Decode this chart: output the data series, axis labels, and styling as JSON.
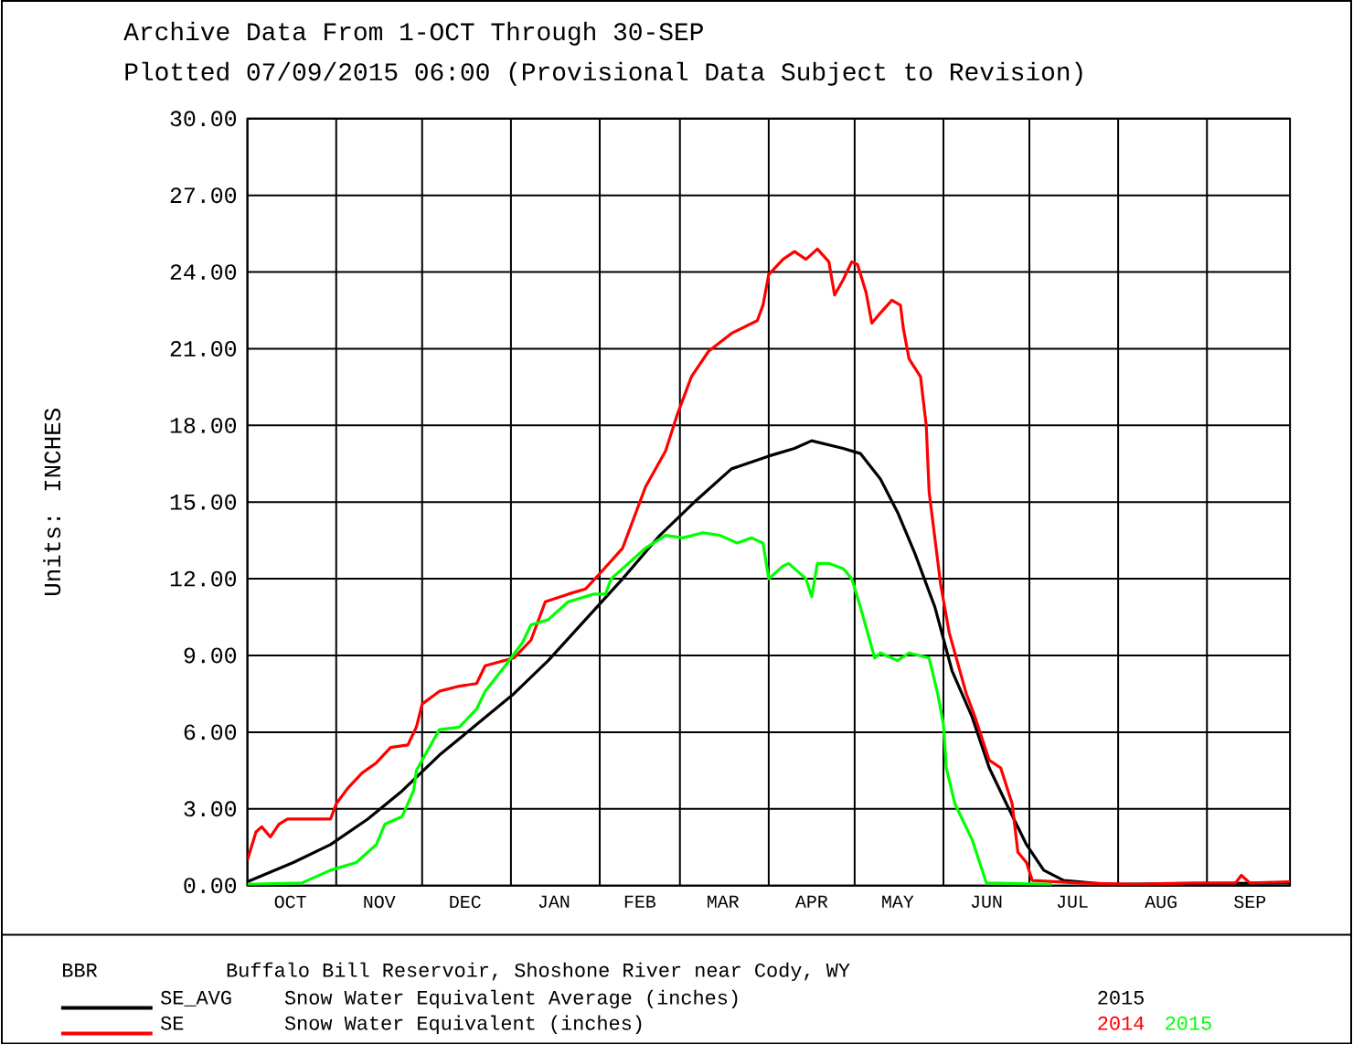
{
  "chart_data": {
    "type": "line",
    "title": "Archive Data From  1-OCT Through 30-SEP",
    "subtitle": "Plotted 07/09/2015  06:00 (Provisional Data Subject to Revision)",
    "ylabel": "Units: INCHES",
    "xlim": [
      "2014-10-01",
      "2015-09-30"
    ],
    "xticks": [
      {
        "value": "2014-10-01",
        "label": null
      },
      {
        "value": "2014-11-01",
        "label": null
      },
      {
        "value": "2014-12-01",
        "label": null
      },
      {
        "value": "2015-01-01",
        "label": null
      },
      {
        "value": "2015-02-01",
        "label": null
      },
      {
        "value": "2015-03-01",
        "label": null
      },
      {
        "value": "2015-04-01",
        "label": null
      },
      {
        "value": "2015-05-01",
        "label": null
      },
      {
        "value": "2015-06-01",
        "label": null
      },
      {
        "value": "2015-07-01",
        "label": null
      },
      {
        "value": "2015-08-01",
        "label": null
      },
      {
        "value": "2015-09-01",
        "label": null
      },
      {
        "value": "2014-10-16",
        "label": "OCT"
      },
      {
        "value": "2014-11-16",
        "label": "NOV"
      },
      {
        "value": "2014-12-16",
        "label": "DEC"
      },
      {
        "value": "2015-01-16",
        "label": "JAN"
      },
      {
        "value": "2015-02-15",
        "label": "FEB"
      },
      {
        "value": "2015-03-16",
        "label": "MAR"
      },
      {
        "value": "2015-04-16",
        "label": "APR"
      },
      {
        "value": "2015-05-16",
        "label": "MAY"
      },
      {
        "value": "2015-06-16",
        "label": "JUN"
      },
      {
        "value": "2015-07-16",
        "label": "JUL"
      },
      {
        "value": "2015-08-16",
        "label": "AUG"
      },
      {
        "value": "2015-09-16",
        "label": "SEP"
      }
    ],
    "ylim": [
      0,
      30
    ],
    "yticks": [
      {
        "value": 0,
        "label": "0.00"
      },
      {
        "value": 3,
        "label": "3.00"
      },
      {
        "value": 6,
        "label": "6.00"
      },
      {
        "value": 9,
        "label": "9.00"
      },
      {
        "value": 12,
        "label": "12.00"
      },
      {
        "value": 15,
        "label": "15.00"
      },
      {
        "value": 18,
        "label": "18.00"
      },
      {
        "value": 21,
        "label": "21.00"
      },
      {
        "value": 24,
        "label": "24.00"
      },
      {
        "value": 27,
        "label": "27.00"
      },
      {
        "value": 30,
        "label": "30.00"
      }
    ],
    "grid": true,
    "legend": "bottom",
    "series": [
      {
        "name": "SE_AVG",
        "color": "#000000",
        "x": [
          "2014-10-01",
          "2014-10-17",
          "2014-10-30",
          "2014-11-12",
          "2014-11-24",
          "2014-12-07",
          "2014-12-20",
          "2015-01-02",
          "2015-01-14",
          "2015-01-27",
          "2015-02-09",
          "2015-02-22",
          "2015-03-07",
          "2015-03-19",
          "2015-04-01",
          "2015-04-10",
          "2015-04-16",
          "2015-04-27",
          "2015-05-03",
          "2015-05-10",
          "2015-05-16",
          "2015-05-22",
          "2015-05-29",
          "2015-06-04",
          "2015-06-11",
          "2015-06-17",
          "2015-06-23",
          "2015-06-30",
          "2015-07-06",
          "2015-07-13",
          "2015-07-28",
          "2015-09-30"
        ],
        "values": [
          0.15,
          0.9,
          1.6,
          2.6,
          3.7,
          5.1,
          6.3,
          7.5,
          8.8,
          10.4,
          12.0,
          13.7,
          15.1,
          16.3,
          16.8,
          17.1,
          17.4,
          17.1,
          16.9,
          15.9,
          14.6,
          13.0,
          10.9,
          8.4,
          6.6,
          4.6,
          3.2,
          1.6,
          0.6,
          0.2,
          0.05,
          0.1
        ]
      },
      {
        "name": "2014",
        "color": "#ff0000",
        "x": [
          "2014-10-01",
          "2014-10-04",
          "2014-10-06",
          "2014-10-09",
          "2014-10-12",
          "2014-10-15",
          "2014-10-20",
          "2014-10-30",
          "2014-11-01",
          "2014-11-05",
          "2014-11-10",
          "2014-11-15",
          "2014-11-20",
          "2014-11-26",
          "2014-11-29",
          "2014-12-01",
          "2014-12-07",
          "2014-12-14",
          "2014-12-20",
          "2014-12-23",
          "2015-01-02",
          "2015-01-08",
          "2015-01-13",
          "2015-01-21",
          "2015-01-27",
          "2015-02-01",
          "2015-02-09",
          "2015-02-12",
          "2015-02-17",
          "2015-02-24",
          "2015-02-28",
          "2015-03-05",
          "2015-03-11",
          "2015-03-19",
          "2015-03-28",
          "2015-03-30",
          "2015-04-01",
          "2015-04-06",
          "2015-04-10",
          "2015-04-14",
          "2015-04-18",
          "2015-04-22",
          "2015-04-24",
          "2015-04-27",
          "2015-04-30",
          "2015-05-02",
          "2015-05-05",
          "2015-05-07",
          "2015-05-10",
          "2015-05-14",
          "2015-05-17",
          "2015-05-18",
          "2015-05-20",
          "2015-05-24",
          "2015-05-26",
          "2015-05-27",
          "2015-05-30",
          "2015-05-31",
          "2015-06-03",
          "2015-06-09",
          "2015-06-12",
          "2015-06-17",
          "2015-06-21",
          "2015-06-25",
          "2015-06-27",
          "2015-06-30",
          "2015-07-02",
          "2015-07-18",
          "2015-08-07",
          "2015-08-27",
          "2015-09-11",
          "2015-09-13",
          "2015-09-16",
          "2015-09-30"
        ],
        "values": [
          1.0,
          2.1,
          2.3,
          1.9,
          2.4,
          2.6,
          2.6,
          2.6,
          3.2,
          3.8,
          4.4,
          4.8,
          5.4,
          5.5,
          6.2,
          7.1,
          7.6,
          7.8,
          7.9,
          8.6,
          8.9,
          9.6,
          11.1,
          11.4,
          11.6,
          12.2,
          13.2,
          14.1,
          15.6,
          17.0,
          18.4,
          19.9,
          20.9,
          21.6,
          22.1,
          22.7,
          23.9,
          24.5,
          24.8,
          24.5,
          24.9,
          24.4,
          23.1,
          23.7,
          24.4,
          24.3,
          23.2,
          22.0,
          22.4,
          22.9,
          22.7,
          21.8,
          20.6,
          19.9,
          18.0,
          15.4,
          12.7,
          11.8,
          9.9,
          7.5,
          6.6,
          4.9,
          4.6,
          3.2,
          1.3,
          0.9,
          0.2,
          0.1,
          0.05,
          0.1,
          0.1,
          0.4,
          0.1,
          0.15
        ]
      },
      {
        "name": "2015",
        "color": "#00ff00",
        "x": [
          "2014-10-01",
          "2014-10-20",
          "2014-10-30",
          "2014-11-08",
          "2014-11-15",
          "2014-11-18",
          "2014-11-24",
          "2014-11-28",
          "2014-11-29",
          "2014-12-02",
          "2014-12-07",
          "2014-12-14",
          "2014-12-20",
          "2014-12-23",
          "2014-12-30",
          "2015-01-05",
          "2015-01-08",
          "2015-01-14",
          "2015-01-21",
          "2015-01-30",
          "2015-02-03",
          "2015-02-05",
          "2015-02-17",
          "2015-02-24",
          "2015-03-02",
          "2015-03-09",
          "2015-03-15",
          "2015-03-21",
          "2015-03-26",
          "2015-03-30",
          "2015-04-01",
          "2015-04-06",
          "2015-04-08",
          "2015-04-14",
          "2015-04-16",
          "2015-04-18",
          "2015-04-22",
          "2015-04-27",
          "2015-04-30",
          "2015-05-03",
          "2015-05-08",
          "2015-05-10",
          "2015-05-16",
          "2015-05-20",
          "2015-05-27",
          "2015-05-30",
          "2015-06-01",
          "2015-06-02",
          "2015-06-05",
          "2015-06-11",
          "2015-06-16",
          "2015-07-09"
        ],
        "values": [
          0.05,
          0.1,
          0.6,
          0.9,
          1.6,
          2.4,
          2.7,
          3.7,
          4.5,
          5.1,
          6.1,
          6.2,
          6.9,
          7.6,
          8.6,
          9.5,
          10.2,
          10.4,
          11.1,
          11.4,
          11.4,
          12.0,
          13.2,
          13.7,
          13.6,
          13.8,
          13.7,
          13.4,
          13.6,
          13.4,
          12.0,
          12.5,
          12.6,
          12.0,
          11.3,
          12.6,
          12.6,
          12.4,
          12.0,
          10.9,
          8.9,
          9.1,
          8.8,
          9.1,
          8.9,
          7.5,
          6.3,
          4.6,
          3.2,
          1.8,
          0.1,
          0.05
        ]
      }
    ],
    "annotations": [
      "BBR",
      "Buffalo Bill Reservoir, Shoshone River near Cody, WY",
      "Snow Water Equivalent Average (inches)",
      "2015",
      "SE",
      "Snow Water Equivalent (inches)"
    ]
  }
}
